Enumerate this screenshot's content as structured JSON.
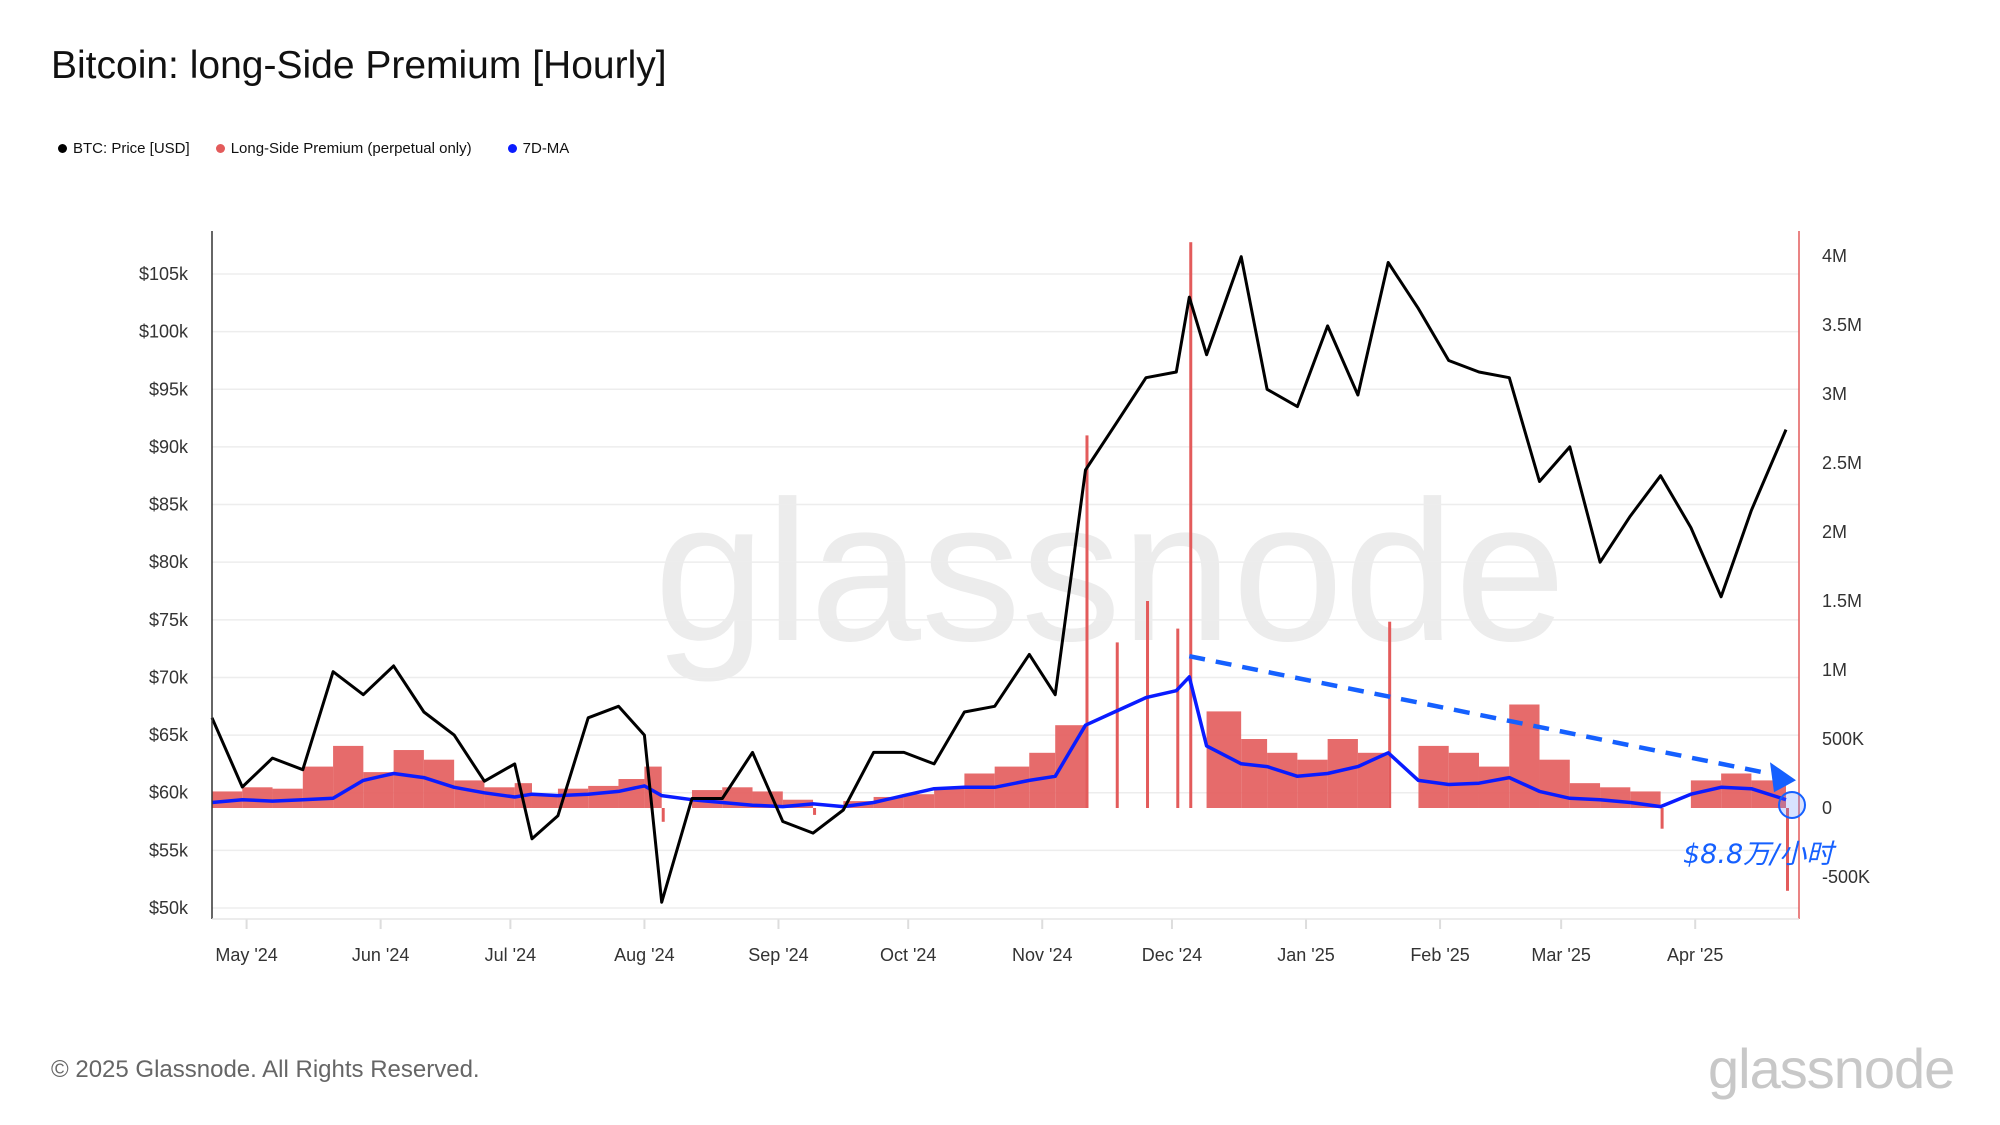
{
  "chart_data": {
    "type": "line",
    "title": "Bitcoin: long-Side Premium [Hourly]",
    "legend": [
      {
        "name": "BTC: Price [USD]",
        "color": "#000000"
      },
      {
        "name": "Long-Side Premium (perpetual only)",
        "color": "#e35b5b"
      },
      {
        "name": "7D-MA",
        "color": "#0a1cff"
      }
    ],
    "legend_placement": "top-left",
    "grid": true,
    "x_ticks": [
      "May '24",
      "Jun '24",
      "Jul '24",
      "Aug '24",
      "Sep '24",
      "Oct '24",
      "Nov '24",
      "Dec '24",
      "Jan '25",
      "Feb '25",
      "Mar '25",
      "Apr '25"
    ],
    "x_tick_dates": [
      "2024-05-01",
      "2024-06-01",
      "2024-07-01",
      "2024-08-01",
      "2024-09-01",
      "2024-10-01",
      "2024-11-01",
      "2024-12-01",
      "2025-01-01",
      "2025-02-01",
      "2025-03-01",
      "2025-04-01"
    ],
    "x_range": [
      "2024-04-23",
      "2025-04-22"
    ],
    "y_left": {
      "ticks": [
        "$50k",
        "$55k",
        "$60k",
        "$65k",
        "$70k",
        "$75k",
        "$80k",
        "$85k",
        "$90k",
        "$95k",
        "$100k",
        "$105k"
      ],
      "tick_values": [
        50000,
        55000,
        60000,
        65000,
        70000,
        75000,
        80000,
        85000,
        90000,
        95000,
        100000,
        105000
      ],
      "range": [
        49000,
        108000
      ]
    },
    "y_right": {
      "ticks": [
        "-500K",
        "0",
        "500K",
        "1M",
        "1.5M",
        "2M",
        "2.5M",
        "3M",
        "3.5M",
        "4M"
      ],
      "tick_values": [
        -500000,
        0,
        500000,
        1000000,
        1500000,
        2000000,
        2500000,
        3000000,
        3500000,
        4000000
      ],
      "range": [
        -750000,
        4150000
      ]
    },
    "dates": [
      "2024-04-23",
      "2024-04-30",
      "2024-05-07",
      "2024-05-14",
      "2024-05-21",
      "2024-05-28",
      "2024-06-04",
      "2024-06-11",
      "2024-06-18",
      "2024-06-25",
      "2024-07-02",
      "2024-07-06",
      "2024-07-12",
      "2024-07-19",
      "2024-07-26",
      "2024-08-01",
      "2024-08-05",
      "2024-08-12",
      "2024-08-19",
      "2024-08-26",
      "2024-09-02",
      "2024-09-09",
      "2024-09-16",
      "2024-09-23",
      "2024-09-30",
      "2024-10-07",
      "2024-10-14",
      "2024-10-21",
      "2024-10-29",
      "2024-11-04",
      "2024-11-11",
      "2024-11-18",
      "2024-11-25",
      "2024-12-02",
      "2024-12-05",
      "2024-12-09",
      "2024-12-17",
      "2024-12-23",
      "2024-12-30",
      "2025-01-06",
      "2025-01-13",
      "2025-01-20",
      "2025-01-27",
      "2025-02-03",
      "2025-02-10",
      "2025-02-17",
      "2025-02-24",
      "2025-03-03",
      "2025-03-10",
      "2025-03-17",
      "2025-03-24",
      "2025-03-31",
      "2025-04-07",
      "2025-04-14",
      "2025-04-22"
    ],
    "series": [
      {
        "name": "BTC: Price [USD]",
        "axis": "left",
        "values": [
          66500,
          60500,
          63000,
          62000,
          70500,
          68500,
          71000,
          67000,
          65000,
          61000,
          62500,
          56000,
          58000,
          66500,
          67500,
          65000,
          50500,
          59500,
          59500,
          63500,
          57500,
          56500,
          58500,
          63500,
          63500,
          62500,
          67000,
          67500,
          72000,
          68500,
          88000,
          92000,
          96000,
          96500,
          103000,
          98000,
          106500,
          95000,
          93500,
          100500,
          94500,
          106000,
          102000,
          97500,
          96500,
          96000,
          87000,
          90000,
          80000,
          84000,
          87500,
          83000,
          77000,
          84500,
          91500
        ]
      },
      {
        "name": "Long-Side Premium (perpetual only)",
        "axis": "right",
        "values": [
          120000,
          150000,
          140000,
          300000,
          450000,
          260000,
          420000,
          350000,
          200000,
          150000,
          180000,
          90000,
          140000,
          160000,
          210000,
          300000,
          -100000,
          130000,
          150000,
          120000,
          60000,
          -50000,
          50000,
          80000,
          100000,
          150000,
          250000,
          300000,
          400000,
          600000,
          2700000,
          1200000,
          1500000,
          1300000,
          4100000,
          700000,
          500000,
          400000,
          350000,
          500000,
          400000,
          1350000,
          450000,
          400000,
          300000,
          750000,
          350000,
          180000,
          150000,
          120000,
          -150000,
          200000,
          250000,
          200000,
          -600000
        ]
      },
      {
        "name": "7D-MA",
        "axis": "right",
        "values": [
          40000,
          60000,
          50000,
          60000,
          70000,
          200000,
          250000,
          220000,
          150000,
          110000,
          80000,
          100000,
          90000,
          100000,
          120000,
          160000,
          90000,
          60000,
          40000,
          20000,
          10000,
          30000,
          10000,
          40000,
          90000,
          140000,
          150000,
          150000,
          200000,
          230000,
          600000,
          700000,
          800000,
          850000,
          950000,
          450000,
          320000,
          300000,
          230000,
          250000,
          300000,
          400000,
          200000,
          170000,
          180000,
          220000,
          120000,
          70000,
          60000,
          40000,
          10000,
          100000,
          150000,
          140000,
          60000
        ]
      }
    ],
    "annotations": {
      "trend_arrow": {
        "from": [
          "2024-12-05",
          1100000
        ],
        "to": [
          "2025-04-22",
          230000
        ],
        "color": "#1560ff"
      },
      "label": "$8.8万/小时"
    }
  },
  "watermark": "glassnode",
  "footer": "© 2025 Glassnode. All Rights Reserved.",
  "logo": "glassnode"
}
